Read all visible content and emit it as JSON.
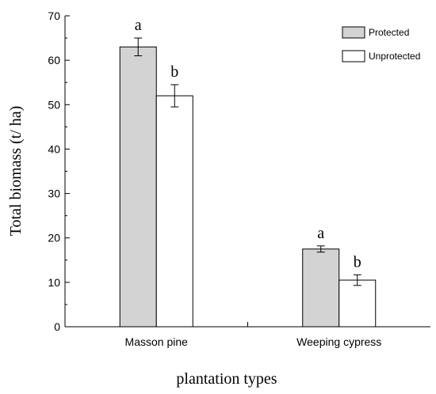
{
  "chart_data": {
    "type": "bar",
    "categories": [
      "Masson pine",
      "Weeping cypress"
    ],
    "series": [
      {
        "name": "Protected",
        "values": [
          63,
          17.5
        ],
        "errors": [
          2,
          0.7
        ],
        "labels": [
          "a",
          "a"
        ],
        "color": "#d3d3d3"
      },
      {
        "name": "Unprotected",
        "values": [
          52,
          10.5
        ],
        "errors": [
          2.5,
          1.2
        ],
        "labels": [
          "b",
          "b"
        ],
        "color": "#ffffff"
      }
    ],
    "xlabel": "plantation types",
    "ylabel": "Total biomass (t/ ha)",
    "ylim": [
      0,
      70
    ],
    "yticks": [
      0,
      10,
      20,
      30,
      40,
      50,
      60,
      70
    ],
    "grid": false,
    "legend_position": "top-right"
  }
}
